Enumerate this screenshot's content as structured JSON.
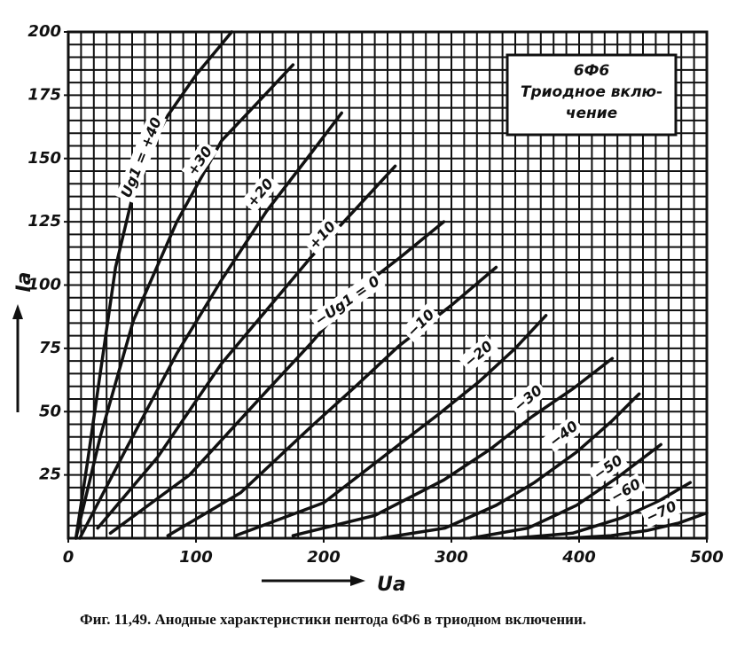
{
  "chart_data": {
    "type": "line",
    "caption": "Фиг. 11,49. Анодные характеристики пентода 6Ф6 в триодном включении.",
    "box": [
      "6Ф6",
      "Триодное вклю-",
      "чение"
    ],
    "xlabel": "Ua",
    "ylabel": "Ia",
    "xlim": [
      0,
      500
    ],
    "ylim": [
      0,
      200
    ],
    "xticks": [
      0,
      100,
      200,
      300,
      400,
      500
    ],
    "yticks": [
      25,
      50,
      75,
      100,
      125,
      150,
      175,
      200
    ],
    "grid": {
      "x_step": 10,
      "y_step": 5
    },
    "color": "#111111",
    "series": [
      {
        "name": "Ug1 = +40",
        "x": [
          6,
          15,
          25,
          37,
          55,
          78,
          100,
          128
        ],
        "values": [
          0,
          30,
          65,
          107,
          145,
          167,
          183,
          200
        ]
      },
      {
        "name": "+30",
        "x": [
          6,
          25,
          51,
          85,
          120,
          150,
          176
        ],
        "values": [
          0,
          40,
          86,
          125,
          157,
          173,
          187
        ]
      },
      {
        "name": "+20",
        "x": [
          9,
          45,
          85,
          120,
          155,
          190,
          214
        ],
        "values": [
          0,
          35,
          73,
          102,
          129,
          152,
          168
        ]
      },
      {
        "name": "+10",
        "x": [
          23,
          70,
          120,
          155,
          190,
          225,
          256
        ],
        "values": [
          4,
          32,
          69,
          90,
          111,
          130,
          147
        ]
      },
      {
        "name": "−Ug1 = 0",
        "x": [
          33,
          95,
          155,
          190,
          224,
          260,
          294
        ],
        "values": [
          2,
          25,
          58,
          77,
          97,
          111,
          125
        ]
      },
      {
        "name": "−10",
        "x": [
          78,
          135,
          190,
          225,
          259,
          300,
          335
        ],
        "values": [
          1,
          18,
          44,
          60,
          76,
          92,
          107
        ]
      },
      {
        "name": "−20",
        "x": [
          131,
          200,
          259,
          290,
          322,
          350,
          374
        ],
        "values": [
          1,
          14,
          37,
          49,
          62,
          75,
          88
        ]
      },
      {
        "name": "−30",
        "x": [
          176,
          240,
          294,
          330,
          363,
          395,
          426
        ],
        "values": [
          1,
          9,
          23,
          35,
          48,
          59,
          71
        ]
      },
      {
        "name": "−40",
        "x": [
          245,
          295,
          335,
          365,
          398,
          425,
          447
        ],
        "values": [
          0,
          4,
          13,
          22,
          34,
          46,
          57
        ]
      },
      {
        "name": "−50",
        "x": [
          315,
          360,
          398,
          430,
          464
        ],
        "values": [
          0,
          4,
          13,
          24,
          37
        ]
      },
      {
        "name": "−60",
        "x": [
          349,
          395,
          433,
          460,
          487
        ],
        "values": [
          0,
          2,
          8,
          14,
          22
        ]
      },
      {
        "name": "−70",
        "x": [
          391,
          425,
          453,
          478,
          500
        ],
        "values": [
          0,
          1,
          3,
          6,
          10
        ]
      }
    ]
  }
}
